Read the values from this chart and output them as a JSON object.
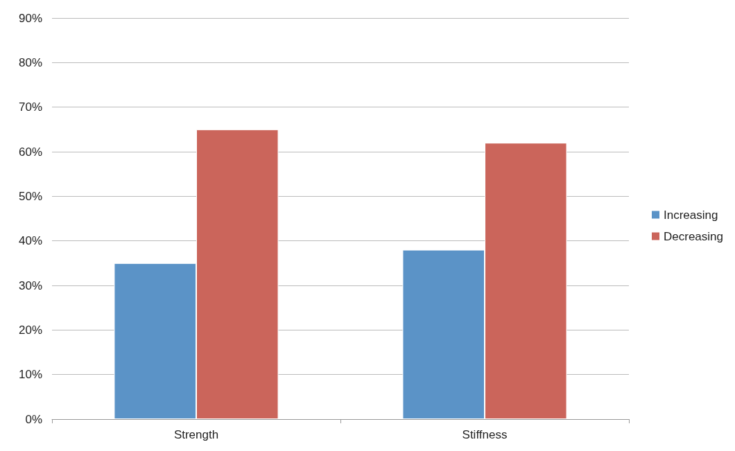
{
  "chart_data": {
    "type": "bar",
    "categories": [
      "Strength",
      "Stiffness"
    ],
    "series": [
      {
        "name": "Increasing",
        "color": "#5b93c7",
        "values": [
          35,
          38
        ]
      },
      {
        "name": "Decreasing",
        "color": "#cb655b",
        "values": [
          65,
          62
        ]
      }
    ],
    "ylim": [
      0,
      90
    ],
    "yticks": [
      {
        "value": 0,
        "label": "0%"
      },
      {
        "value": 10,
        "label": "10%"
      },
      {
        "value": 20,
        "label": "20%"
      },
      {
        "value": 30,
        "label": "30%"
      },
      {
        "value": 40,
        "label": "40%"
      },
      {
        "value": 50,
        "label": "50%"
      },
      {
        "value": 60,
        "label": "60%"
      },
      {
        "value": 70,
        "label": "70%"
      },
      {
        "value": 80,
        "label": "80%"
      },
      {
        "value": 90,
        "label": "90%"
      }
    ],
    "grid": "y",
    "legend": "right"
  }
}
